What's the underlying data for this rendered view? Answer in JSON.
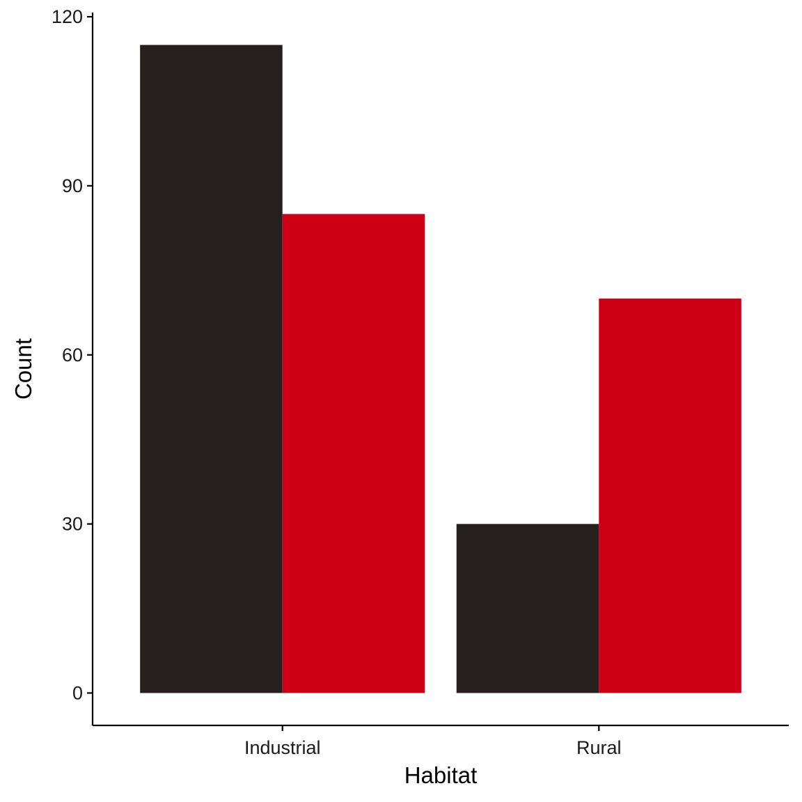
{
  "chart_data": {
    "type": "bar",
    "categories": [
      "Industrial",
      "Rural"
    ],
    "series": [
      {
        "values": [
          115,
          30
        ],
        "color": "#261f1f"
      },
      {
        "values": [
          85,
          70
        ],
        "color": "#cf0015"
      }
    ],
    "xlabel": "Habitat",
    "ylabel": "Count",
    "ylim": [
      -5.75,
      120.75
    ],
    "yticks": [
      0,
      30,
      60,
      90,
      120
    ],
    "grid": false,
    "legend": "none"
  }
}
